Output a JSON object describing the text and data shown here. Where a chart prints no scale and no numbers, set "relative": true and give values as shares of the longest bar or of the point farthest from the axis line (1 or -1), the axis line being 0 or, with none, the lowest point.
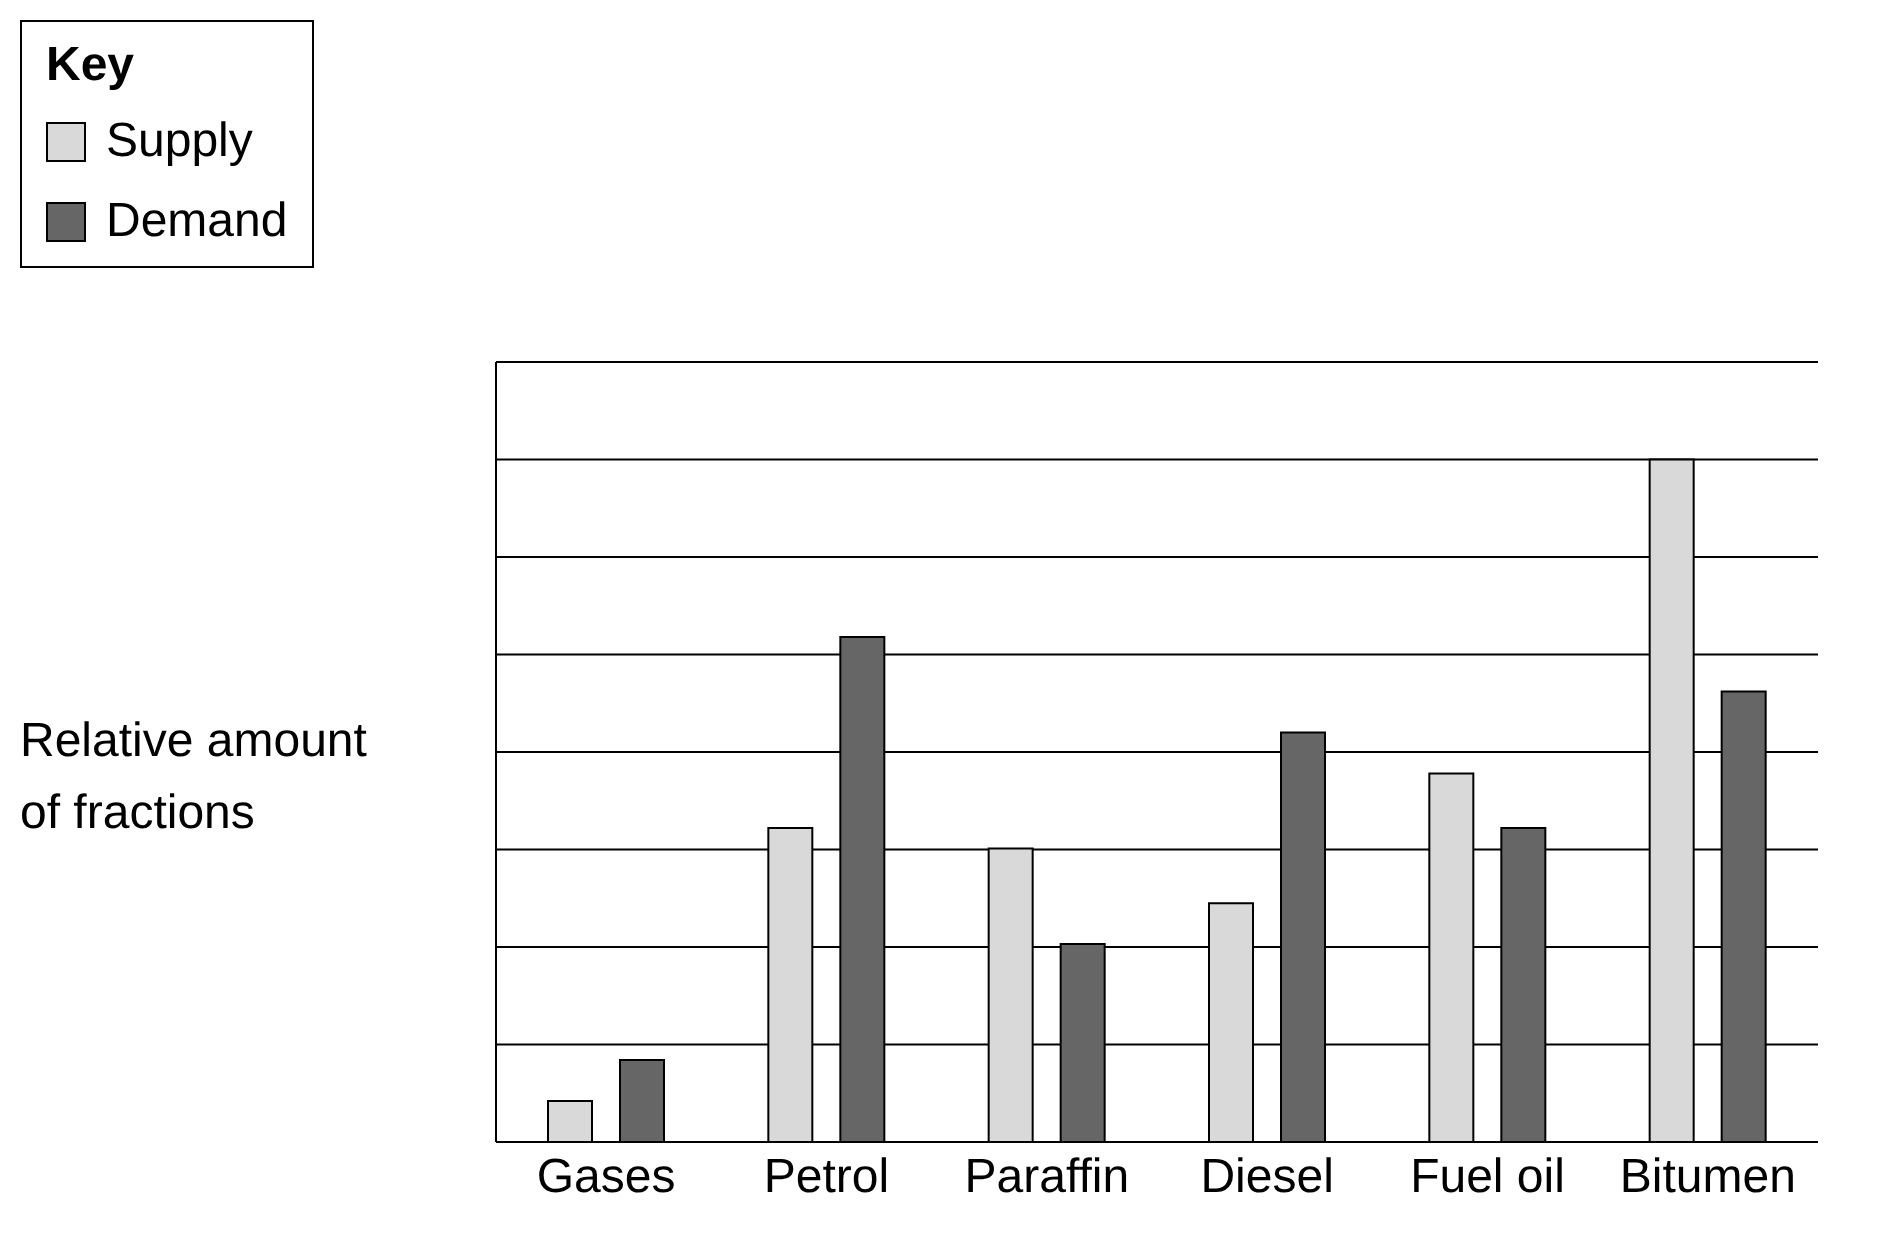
{
  "chart_data": {
    "type": "bar",
    "relative": true,
    "ylabel": "Relative amount of fractions",
    "legend_title": "Key",
    "legend": "top left",
    "grid": "y",
    "categories": [
      "Gases",
      "Petrol",
      "Paraffin",
      "Diesel",
      "Fuel oil",
      "Bitumen"
    ],
    "series": [
      {
        "name": "Supply",
        "color": "#d9d9d9",
        "values": [
          0.06,
          0.46,
          0.43,
          0.35,
          0.54,
          1
        ]
      },
      {
        "name": "Demand",
        "color": "#666666",
        "values": [
          0.12,
          0.74,
          0.29,
          0.6,
          0.46,
          0.66
        ]
      }
    ]
  }
}
